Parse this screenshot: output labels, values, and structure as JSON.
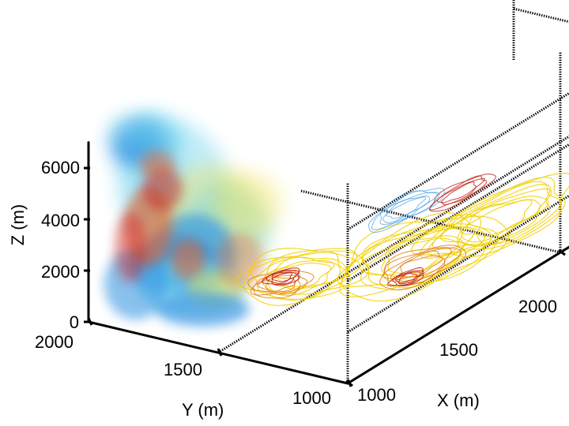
{
  "chart_data": {
    "type": "volume-3d",
    "title": "",
    "xlabel": "X (m)",
    "ylabel": "Y (m)",
    "zlabel": "Z (m)",
    "x_ticks": [
      "1000",
      "1500",
      "2000"
    ],
    "y_ticks": [
      "2000",
      "1500",
      "1000"
    ],
    "z_ticks": [
      "0",
      "2000",
      "4000",
      "6000"
    ],
    "xlim": [
      1000,
      2000
    ],
    "ylim": [
      1000,
      2000
    ],
    "zlim": [
      0,
      8000
    ],
    "grid": true,
    "grid_style": "dotted",
    "colors": {
      "contour_outer": "#f2d000",
      "contour_mid": "#e07a10",
      "contour_inner": "#c01a10",
      "plume_blue": "#2a8fe0",
      "plume_cyan": "#6fd4f0",
      "plume_yellow": "#f4e24a",
      "plume_orange": "#e8602a",
      "plume_red": "#c81e1e"
    }
  }
}
